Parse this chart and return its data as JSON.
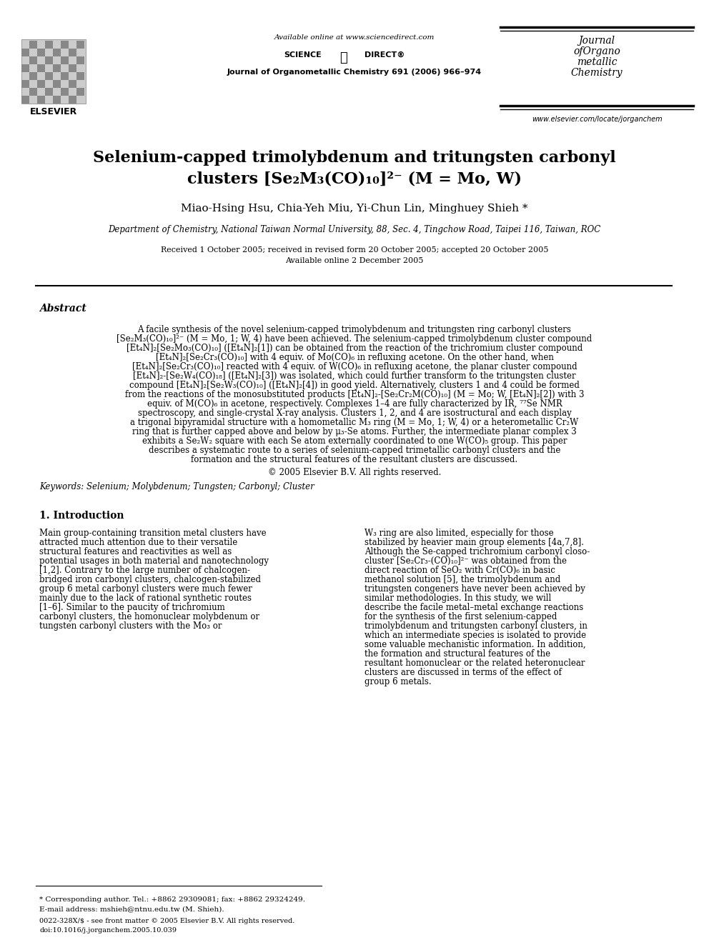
{
  "bg_color": "#ffffff",
  "title_line1": "Selenium-capped trimolybdenum and tritungsten carbonyl",
  "title_line2": "clusters [Se₂M₃(CO)₁₀]²⁻ (M = Mo, W)",
  "authors": "Miao-Hsing Hsu, Chia-Yeh Miu, Yi-Chun Lin, Minghuey Shieh *",
  "affiliation": "Department of Chemistry, National Taiwan Normal University, 88, Sec. 4, Tingchow Road, Taipei 116, Taiwan, ROC",
  "received": "Received 1 October 2005; received in revised form 20 October 2005; accepted 20 October 2005",
  "available": "Available online 2 December 2005",
  "journal_header": "Journal of Organometallic Chemistry 691 (2006) 966–974",
  "available_online": "Available online at www.sciencedirect.com",
  "journal_name_line1": "Journal",
  "journal_name_line2": "ofOrgano",
  "journal_name_line3": "metallic",
  "journal_name_line4": "Chemistry",
  "elsevier_text": "ELSEVIER",
  "website": "www.elsevier.com/locate/jorganchem",
  "abstract_title": "Abstract",
  "abstract_text": "A facile synthesis of the novel selenium-capped trimolybdenum and tritungsten ring carbonyl clusters [Se₂M₃(CO)₁₀]²⁻ (M = Mo, 1; W, 4) have been achieved. The selenium-capped trimolybdenum cluster compound [Et₄N]₂[Se₂Mo₃(CO)₁₀] ([Et₄N]₂[1]) can be obtained from the reaction of the trichromium cluster compound [Et₄N]₂[Se₂Cr₃(CO)₁₀] with 4 equiv. of Mo(CO)₆ in refluxing acetone. On the other hand, when [Et₄N]₂[Se₂Cr₃(CO)₁₀] reacted with 4 equiv. of W(CO)₆ in refluxing acetone, the planar cluster compound [Et₄N]₂-[Se₂W₄(CO)₁₈] ([Et₄N]₂[3]) was isolated, which could further transform to the tritungsten cluster compound [Et₄N]₂[Se₂W₃(CO)₁₀] ([Et₄N]₂[4]) in good yield. Alternatively, clusters 1 and 4 could be formed from the reactions of the monosubstituted products [Et₄N]₂-[Se₂Cr₂M(CO)₁₀] (M = Mo; W, [Et₄N]₂[2]) with 3 equiv. of M(CO)₆ in acetone, respectively. Complexes 1–4 are fully characterized by IR, ⁷⁷Se NMR spectroscopy, and single-crystal X-ray analysis. Clusters 1, 2, and 4 are isostructural and each display a trigonal bipyramidal structure with a homometallic M₃ ring (M = Mo, 1; W, 4) or a heterometallic Cr₂W ring that is further capped above and below by μ₃-Se atoms. Further, the intermediate planar complex 3 exhibits a Se₂W₂ square with each Se atom externally coordinated to one W(CO)₅ group. This paper describes a systematic route to a series of selenium-capped trimetallic carbonyl clusters and the formation and the structural features of the resultant clusters are discussed.",
  "copyright": "© 2005 Elsevier B.V. All rights reserved.",
  "keywords_label": "Keywords:",
  "keywords": "Selenium; Molybdenum; Tungsten; Carbonyl; Cluster",
  "intro_title": "1. Introduction",
  "intro_left": "Main group-containing transition metal clusters have attracted much attention due to their versatile structural features and reactivities as well as potential usages in both material and nanotechnology [1,2]. Contrary to the large number of chalcogen-bridged iron carbonyl clusters, chalcogen-stabilized group 6 metal carbonyl clusters were much fewer mainly due to the lack of rational synthetic routes [1–6]. Similar to the paucity of trichromium carbonyl clusters, the homonuclear molybdenum or tungsten carbonyl clusters with the Mo₃ or",
  "intro_right": "W₃ ring are also limited, especially for those stabilized by heavier main group elements [4a,7,8]. Although the Se-capped trichromium carbonyl closo-cluster [Se₂Cr₃-(CO)₁₀]²⁻ was obtained from the direct reaction of SeO₂ with Cr(CO)₆ in basic methanol solution [5], the trimolybdenum and tritungsten congeners have never been achieved by similar methodologies. In this study, we will describe the facile metal–metal exchange reactions for the synthesis of the first selenium-capped trimolybdenum and tritungsten carbonyl clusters, in which an intermediate species is isolated to provide some valuable mechanistic information. In addition, the formation and structural features of the resultant homonuclear or the related heteronuclear clusters are discussed in terms of the effect of group 6 metals.",
  "footnote_star": "* Corresponding author. Tel.: +8862 29309081; fax: +8862 29324249.",
  "footnote_email": "E-mail address: mshieh@ntnu.edu.tw (M. Shieh).",
  "footnote_issn": "0022-328X/$ - see front matter © 2005 Elsevier B.V. All rights reserved.",
  "footnote_doi": "doi:10.1016/j.jorganchem.2005.10.039"
}
